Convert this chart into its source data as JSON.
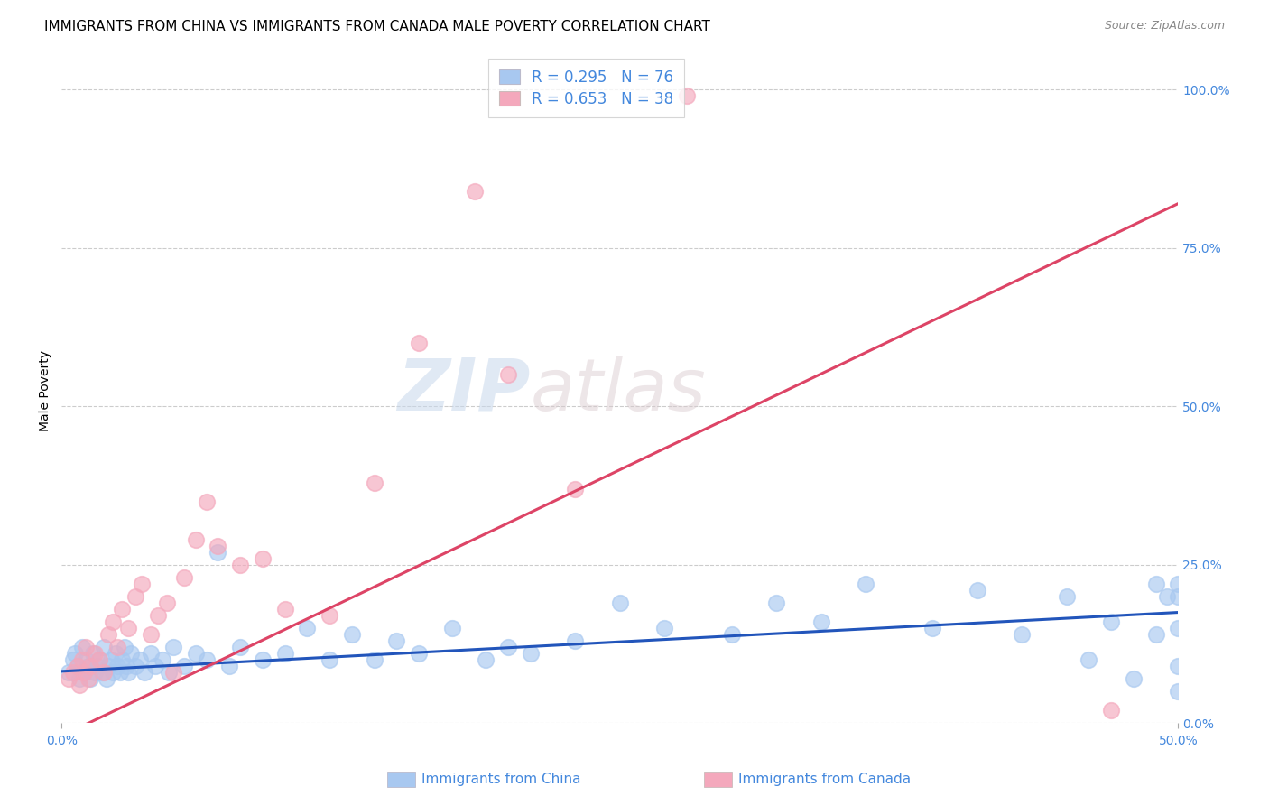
{
  "title": "IMMIGRANTS FROM CHINA VS IMMIGRANTS FROM CANADA MALE POVERTY CORRELATION CHART",
  "source": "Source: ZipAtlas.com",
  "xlabel_ticks": [
    "0.0%",
    "50.0%"
  ],
  "ylabel": "Male Poverty",
  "right_yticks": [
    "0.0%",
    "25.0%",
    "50.0%",
    "75.0%",
    "100.0%"
  ],
  "right_ytick_vals": [
    0.0,
    0.25,
    0.5,
    0.75,
    1.0
  ],
  "xmin": 0.0,
  "xmax": 0.5,
  "ymin": 0.0,
  "ymax": 1.05,
  "r_china": 0.295,
  "n_china": 76,
  "r_canada": 0.653,
  "n_canada": 38,
  "color_china": "#A8C8F0",
  "color_canada": "#F4A8BC",
  "line_color_china": "#2255BB",
  "line_color_canada": "#DD4466",
  "legend_label_china": "Immigrants from China",
  "legend_label_canada": "Immigrants from Canada",
  "watermark_zip": "ZIP",
  "watermark_atlas": "atlas",
  "grid_color": "#CCCCCC",
  "background_color": "#FFFFFF",
  "title_fontsize": 11,
  "axis_label_fontsize": 10,
  "tick_fontsize": 10,
  "legend_fontsize": 12,
  "china_line_x0": 0.0,
  "china_line_x1": 0.5,
  "china_line_y0": 0.082,
  "china_line_y1": 0.175,
  "canada_line_x0": 0.0,
  "canada_line_x1": 0.5,
  "canada_line_y0": -0.02,
  "canada_line_y1": 0.82,
  "china_x": [
    0.003,
    0.005,
    0.006,
    0.007,
    0.008,
    0.009,
    0.01,
    0.011,
    0.012,
    0.013,
    0.014,
    0.015,
    0.016,
    0.017,
    0.018,
    0.019,
    0.02,
    0.021,
    0.022,
    0.023,
    0.024,
    0.025,
    0.026,
    0.027,
    0.028,
    0.029,
    0.03,
    0.031,
    0.033,
    0.035,
    0.037,
    0.04,
    0.042,
    0.045,
    0.048,
    0.05,
    0.055,
    0.06,
    0.065,
    0.07,
    0.075,
    0.08,
    0.09,
    0.1,
    0.11,
    0.12,
    0.13,
    0.14,
    0.15,
    0.16,
    0.175,
    0.19,
    0.2,
    0.21,
    0.23,
    0.25,
    0.27,
    0.3,
    0.32,
    0.34,
    0.36,
    0.39,
    0.41,
    0.43,
    0.45,
    0.46,
    0.47,
    0.48,
    0.49,
    0.49,
    0.495,
    0.5,
    0.5,
    0.5,
    0.5,
    0.5
  ],
  "china_y": [
    0.08,
    0.1,
    0.11,
    0.09,
    0.07,
    0.12,
    0.08,
    0.1,
    0.09,
    0.07,
    0.11,
    0.08,
    0.09,
    0.1,
    0.08,
    0.12,
    0.07,
    0.09,
    0.1,
    0.08,
    0.11,
    0.09,
    0.08,
    0.1,
    0.12,
    0.09,
    0.08,
    0.11,
    0.09,
    0.1,
    0.08,
    0.11,
    0.09,
    0.1,
    0.08,
    0.12,
    0.09,
    0.11,
    0.1,
    0.27,
    0.09,
    0.12,
    0.1,
    0.11,
    0.15,
    0.1,
    0.14,
    0.1,
    0.13,
    0.11,
    0.15,
    0.1,
    0.12,
    0.11,
    0.13,
    0.19,
    0.15,
    0.14,
    0.19,
    0.16,
    0.22,
    0.15,
    0.21,
    0.14,
    0.2,
    0.1,
    0.16,
    0.07,
    0.22,
    0.14,
    0.2,
    0.09,
    0.15,
    0.05,
    0.22,
    0.2
  ],
  "canada_x": [
    0.003,
    0.005,
    0.007,
    0.008,
    0.009,
    0.01,
    0.011,
    0.012,
    0.013,
    0.015,
    0.017,
    0.019,
    0.021,
    0.023,
    0.025,
    0.027,
    0.03,
    0.033,
    0.036,
    0.04,
    0.043,
    0.047,
    0.05,
    0.055,
    0.06,
    0.065,
    0.07,
    0.08,
    0.09,
    0.1,
    0.12,
    0.14,
    0.16,
    0.185,
    0.2,
    0.23,
    0.28,
    0.47
  ],
  "canada_y": [
    0.07,
    0.08,
    0.09,
    0.06,
    0.1,
    0.08,
    0.12,
    0.07,
    0.09,
    0.11,
    0.1,
    0.08,
    0.14,
    0.16,
    0.12,
    0.18,
    0.15,
    0.2,
    0.22,
    0.14,
    0.17,
    0.19,
    0.08,
    0.23,
    0.29,
    0.35,
    0.28,
    0.25,
    0.26,
    0.18,
    0.17,
    0.38,
    0.6,
    0.84,
    0.55,
    0.37,
    0.99,
    0.02
  ]
}
